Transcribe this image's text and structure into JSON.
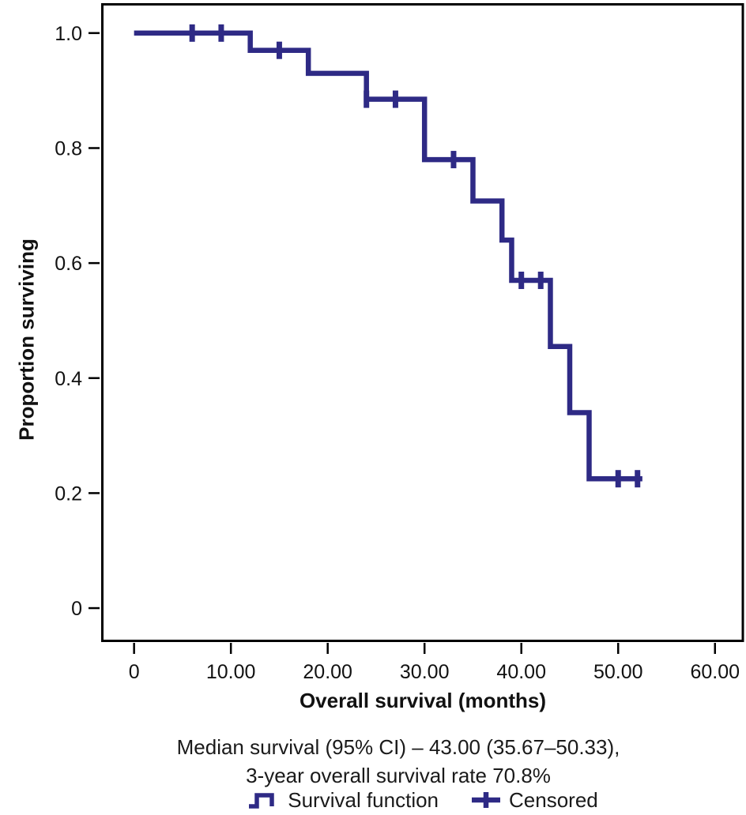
{
  "chart_data": {
    "type": "line",
    "subtype": "kaplan_meier_step_function",
    "title": "",
    "xlabel": "Overall survival (months)",
    "ylabel": "Proportion surviving",
    "x_ticks": [
      {
        "v": 0,
        "label": "0"
      },
      {
        "v": 10,
        "label": "10.00"
      },
      {
        "v": 20,
        "label": "20.00"
      },
      {
        "v": 30,
        "label": "30.00"
      },
      {
        "v": 40,
        "label": "40.00"
      },
      {
        "v": 50,
        "label": "50.00"
      },
      {
        "v": 60,
        "label": "60.00"
      }
    ],
    "y_ticks": [
      {
        "v": 0,
        "label": "0"
      },
      {
        "v": 0.2,
        "label": "0.2"
      },
      {
        "v": 0.4,
        "label": "0.4"
      },
      {
        "v": 0.6,
        "label": "0.6"
      },
      {
        "v": 0.8,
        "label": "0.8"
      },
      {
        "v": 1.0,
        "label": "1.0"
      }
    ],
    "xlim": [
      -3.4,
      63.0
    ],
    "ylim": [
      -0.059,
      1.052
    ],
    "grid": false,
    "series": [
      {
        "name": "Survival function",
        "start": {
          "t": 0,
          "s": 1.0
        },
        "steps": [
          {
            "t": 12,
            "s": 0.97
          },
          {
            "t": 18,
            "s": 0.93
          },
          {
            "t": 24,
            "s": 0.885
          },
          {
            "t": 30,
            "s": 0.78
          },
          {
            "t": 35,
            "s": 0.708
          },
          {
            "t": 38,
            "s": 0.64
          },
          {
            "t": 39,
            "s": 0.57
          },
          {
            "t": 43,
            "s": 0.455
          },
          {
            "t": 45,
            "s": 0.34
          },
          {
            "t": 47,
            "s": 0.225
          }
        ],
        "end_t": 52.5
      }
    ],
    "censored": [
      {
        "t": 6,
        "s": 1.0
      },
      {
        "t": 9,
        "s": 1.0
      },
      {
        "t": 15,
        "s": 0.97
      },
      {
        "t": 24,
        "s": 0.885
      },
      {
        "t": 27,
        "s": 0.885
      },
      {
        "t": 33,
        "s": 0.78
      },
      {
        "t": 40,
        "s": 0.57
      },
      {
        "t": 42,
        "s": 0.57
      },
      {
        "t": 50,
        "s": 0.225
      },
      {
        "t": 52,
        "s": 0.225
      }
    ],
    "annotation": {
      "line1": "Median survival (95% CI) – 43.00 (35.67–50.33),",
      "line2": "3-year overall survival rate 70.8%"
    },
    "legend": [
      {
        "icon": "step-line",
        "label": "Survival function"
      },
      {
        "icon": "plus",
        "label": "Censored"
      }
    ],
    "legend_position": "bottom-center",
    "colors": {
      "curve": "#2e2a85",
      "axis": "#000000",
      "text": "#111111"
    },
    "stats": {
      "median_survival_months": "43.00",
      "median_ci_low": "35.67",
      "median_ci_high": "50.33",
      "three_year_os_rate_pct": "70.8"
    }
  }
}
